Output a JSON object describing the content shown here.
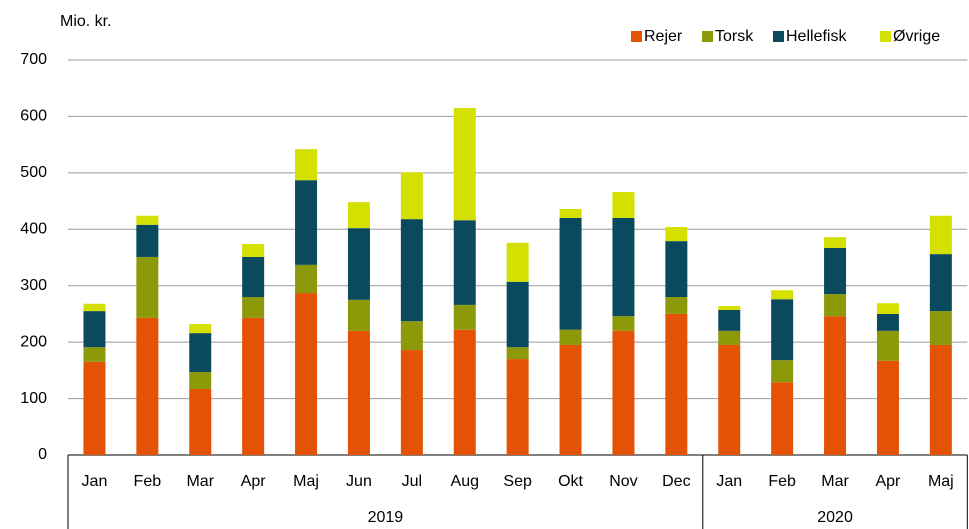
{
  "chart_data": {
    "type": "stacked_bar",
    "y_unit_label": "Mio. kr.",
    "category_groups": [
      {
        "name": "2019",
        "categories": [
          "Jan",
          "Feb",
          "Mar",
          "Apr",
          "Maj",
          "Jun",
          "Jul",
          "Aug",
          "Sep",
          "Okt",
          "Nov",
          "Dec"
        ]
      },
      {
        "name": "2020",
        "categories": [
          "Jan",
          "Feb",
          "Mar",
          "Apr",
          "Maj"
        ]
      }
    ],
    "series": [
      {
        "name": "Rejer",
        "color": "#e35205",
        "values": [
          165,
          243,
          117,
          243,
          287,
          220,
          186,
          222,
          170,
          195,
          220,
          250,
          195,
          129,
          246,
          167,
          195
        ]
      },
      {
        "name": "Torsk",
        "color": "#8c9a0a",
        "values": [
          26,
          108,
          30,
          37,
          50,
          55,
          51,
          44,
          21,
          27,
          26,
          30,
          25,
          39,
          39,
          53,
          60
        ]
      },
      {
        "name": "Hellefisk",
        "color": "#0b4a5e",
        "values": [
          64,
          57,
          69,
          71,
          150,
          127,
          181,
          150,
          116,
          198,
          174,
          99,
          37,
          108,
          82,
          30,
          101
        ]
      },
      {
        "name": "Øvrige",
        "color": "#d4e000",
        "values": [
          13,
          16,
          16,
          23,
          55,
          46,
          83,
          199,
          69,
          16,
          46,
          25,
          7,
          16,
          19,
          19,
          68
        ]
      }
    ],
    "ylim": [
      0,
      700
    ],
    "yticks": [
      0,
      100,
      200,
      300,
      400,
      500,
      600,
      700
    ],
    "grid": true,
    "legend": "top-right"
  }
}
